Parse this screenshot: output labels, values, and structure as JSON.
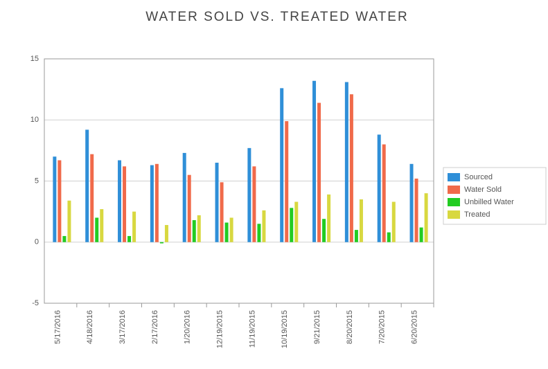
{
  "chart_data": {
    "type": "bar",
    "title": "WATER SOLD VS. TREATED WATER",
    "categories": [
      "5/17/2016",
      "4/18/2016",
      "3/17/2016",
      "2/17/2016",
      "1/20/2016",
      "12/19/2015",
      "11/19/2015",
      "10/19/2015",
      "9/21/2015",
      "8/20/2015",
      "7/20/2015",
      "6/20/2015"
    ],
    "series": [
      {
        "name": "Sourced",
        "color": "#2f8fd8",
        "values": [
          7.0,
          9.2,
          6.7,
          6.3,
          7.3,
          6.5,
          7.7,
          12.6,
          13.2,
          13.1,
          8.8,
          6.4
        ]
      },
      {
        "name": "Water Sold",
        "color": "#f06a4a",
        "values": [
          6.7,
          7.2,
          6.2,
          6.4,
          5.5,
          4.9,
          6.2,
          9.9,
          11.4,
          12.1,
          8.0,
          5.2
        ]
      },
      {
        "name": "Unbilled Water",
        "color": "#22cc22",
        "values": [
          0.5,
          2.0,
          0.5,
          -0.1,
          1.8,
          1.6,
          1.5,
          2.8,
          1.9,
          1.0,
          0.8,
          1.2
        ]
      },
      {
        "name": "Treated",
        "color": "#d8d840",
        "values": [
          3.4,
          2.7,
          2.5,
          1.4,
          2.2,
          2.0,
          2.6,
          3.3,
          3.9,
          3.5,
          3.3,
          4.0
        ]
      }
    ],
    "ylim": [
      -5,
      15
    ],
    "yticks": [
      -5,
      0,
      5,
      10,
      15
    ],
    "grid": true,
    "legend": "right"
  }
}
